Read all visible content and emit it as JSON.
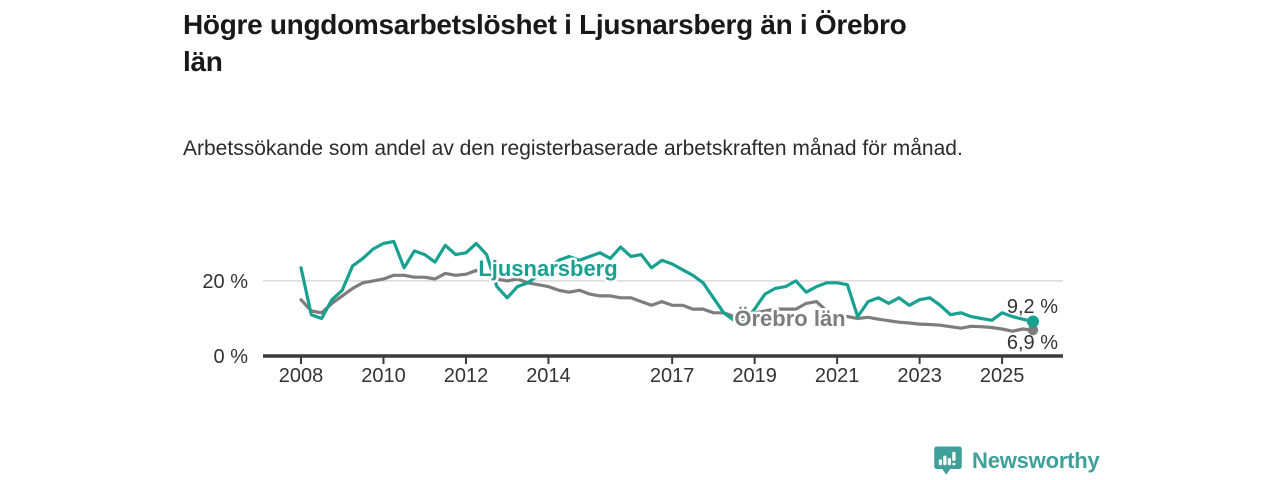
{
  "page": {
    "background": "#ffffff"
  },
  "header": {
    "title": "Högre ungdomsarbetslöshet i Ljusnarsberg än i Örebro län",
    "subtitle": "Arbetssökande som andel av den registerbaserade arbetskraften månad för månad."
  },
  "branding": {
    "logo_text": "Newsworthy",
    "logo_icon": "speech-bubble-bar-chart-icon",
    "logo_color": "#3fa09a"
  },
  "chart_data": {
    "type": "line",
    "title": "Högre ungdomsarbetslöshet i Ljusnarsberg än i Örebro län",
    "subtitle": "Arbetssökande som andel av den registerbaserade arbetskraften månad för månad.",
    "x_unit": "year",
    "ylim": [
      0,
      33
    ],
    "grid_values": [
      20
    ],
    "grid_color": "#d9d9d9",
    "axis_color": "#3c3c3c",
    "tick_label_color": "#333333",
    "legend": "inline-labels",
    "y_ticks": [
      {
        "value": 20,
        "label": "20 %"
      },
      {
        "value": 0,
        "label": "0 %"
      }
    ],
    "x_ticks": [
      {
        "value": 2008,
        "label": "2008"
      },
      {
        "value": 2010,
        "label": "2010"
      },
      {
        "value": 2012,
        "label": "2012"
      },
      {
        "value": 2014,
        "label": "2014"
      },
      {
        "value": 2017,
        "label": "2017"
      },
      {
        "value": 2019,
        "label": "2019"
      },
      {
        "value": 2021,
        "label": "2021"
      },
      {
        "value": 2023,
        "label": "2023"
      },
      {
        "value": 2025,
        "label": "2025"
      }
    ],
    "x": [
      2008,
      2008.25,
      2008.5,
      2008.75,
      2009,
      2009.25,
      2009.5,
      2009.75,
      2010,
      2010.25,
      2010.5,
      2010.75,
      2011,
      2011.25,
      2011.5,
      2011.75,
      2012,
      2012.25,
      2012.5,
      2012.75,
      2013,
      2013.25,
      2013.5,
      2013.75,
      2014,
      2014.25,
      2014.5,
      2014.75,
      2015,
      2015.25,
      2015.5,
      2015.75,
      2016,
      2016.25,
      2016.5,
      2016.75,
      2017,
      2017.25,
      2017.5,
      2017.75,
      2018,
      2018.25,
      2018.5,
      2018.75,
      2019,
      2019.25,
      2019.5,
      2019.75,
      2020,
      2020.25,
      2020.5,
      2020.75,
      2021,
      2021.25,
      2021.5,
      2021.75,
      2022,
      2022.25,
      2022.5,
      2022.75,
      2023,
      2023.25,
      2023.5,
      2023.75,
      2024,
      2024.25,
      2024.5,
      2024.75,
      2025,
      2025.25,
      2025.5,
      2025.75
    ],
    "series": [
      {
        "name": "Ljusnarsberg",
        "id": "ljusnarsberg",
        "color": "#18a091",
        "end_label": "9,2 %",
        "end_value": 9.2,
        "values": [
          23.5,
          11,
          10,
          15,
          17.5,
          24,
          26,
          28.5,
          30,
          30.5,
          23.5,
          28,
          27,
          25,
          29.5,
          27,
          27.5,
          30,
          27,
          18.5,
          15.5,
          18.5,
          19.5,
          21.5,
          23.5,
          25.5,
          26.5,
          25.5,
          26.5,
          27.5,
          26,
          29,
          26.5,
          27,
          23.5,
          25.5,
          24.5,
          23,
          21.5,
          19.5,
          15.5,
          11.5,
          9.5,
          9,
          12.5,
          16.5,
          18,
          18.5,
          20,
          17,
          18.5,
          19.5,
          19.5,
          19,
          10.5,
          14.5,
          15.5,
          14,
          15.5,
          13.5,
          15,
          15.5,
          13.5,
          11,
          11.5,
          10.5,
          10,
          9.5,
          11.5,
          10.5,
          9.8,
          9.2
        ]
      },
      {
        "name": "Örebro län",
        "id": "orebro-lan",
        "color": "#7d7d7d",
        "end_label": "6,9 %",
        "end_value": 6.9,
        "values": [
          15,
          12,
          11.5,
          14,
          16,
          18,
          19.5,
          20,
          20.5,
          21.5,
          21.5,
          21,
          21,
          20.5,
          22,
          21.5,
          21.8,
          22.8,
          21.5,
          20.5,
          20,
          20.5,
          19.5,
          19,
          18.5,
          17.5,
          17,
          17.5,
          16.5,
          16,
          16,
          15.5,
          15.5,
          14.5,
          13.5,
          14.5,
          13.5,
          13.5,
          12.5,
          12.5,
          11.5,
          11.5,
          10.5,
          10.5,
          11.5,
          12,
          12.5,
          12.5,
          12.5,
          14,
          14.5,
          12,
          10.5,
          10.5,
          10,
          10.3,
          9.8,
          9.4,
          9,
          8.8,
          8.5,
          8.4,
          8.2,
          7.8,
          7.4,
          7.9,
          7.8,
          7.6,
          7.2,
          6.6,
          7.2,
          6.9
        ]
      }
    ]
  }
}
